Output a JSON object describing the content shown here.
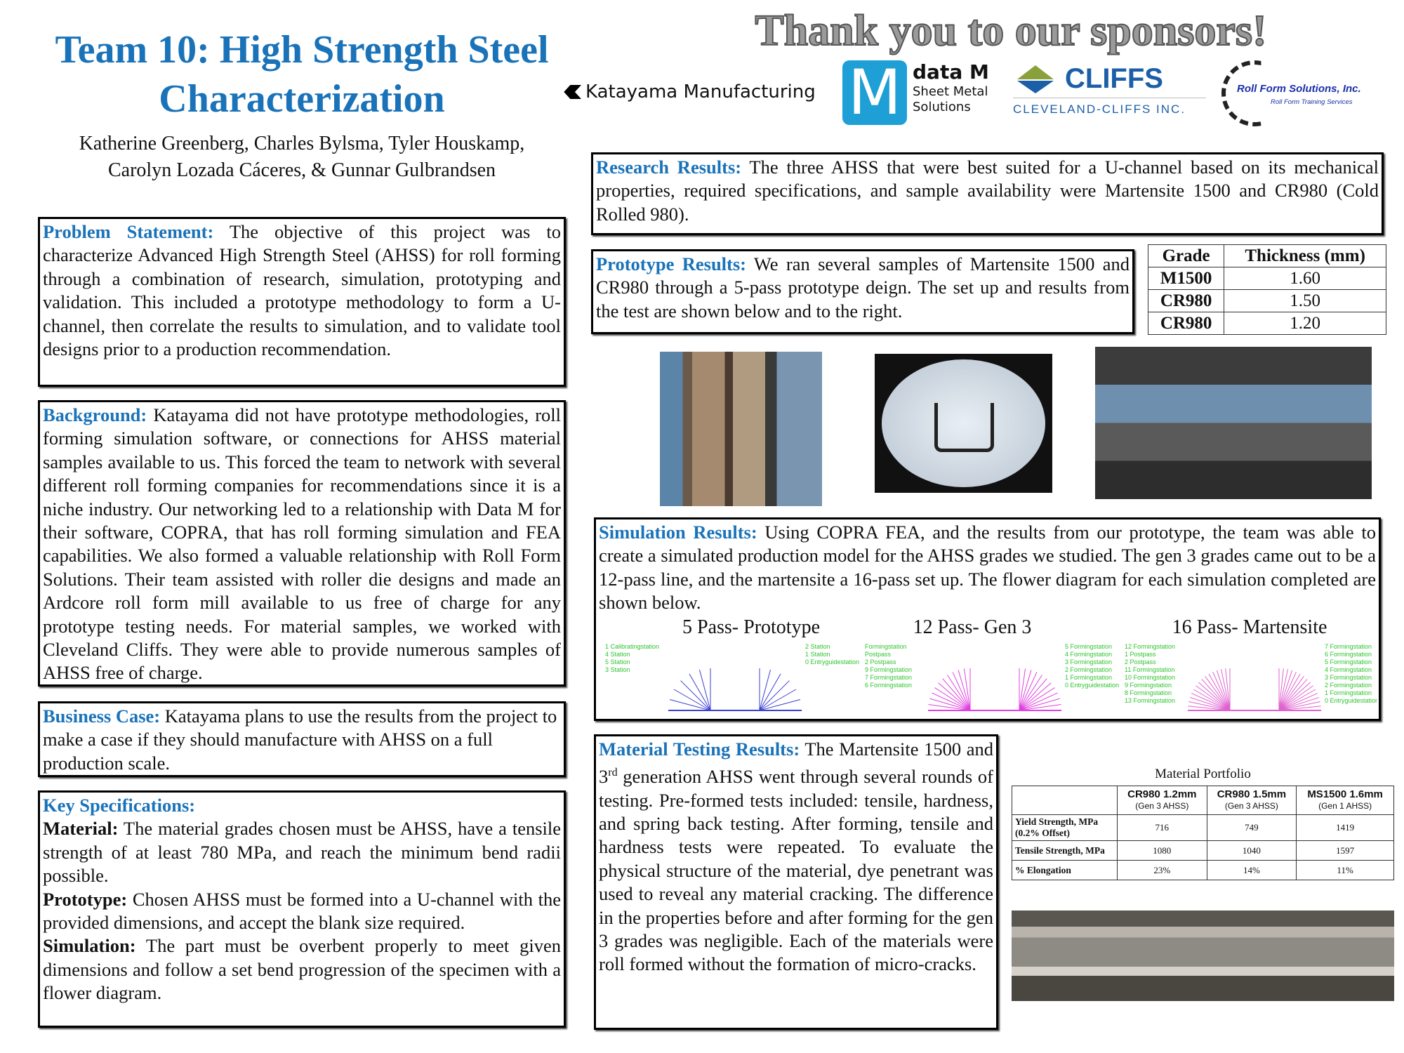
{
  "title": "Team 10: High Strength Steel Characterization",
  "authors": "Katherine Greenberg, Charles Bylsma, Tyler Houskamp, Carolyn Lozada Cáceres, & Gunnar Gulbrandsen",
  "sponsors": {
    "heading": "Thank you to our sponsors!",
    "katayama": "Katayama Manufacturing",
    "datam": {
      "name": "data M",
      "line1": "Sheet Metal",
      "line2": "Solutions",
      "letter": "M"
    },
    "cliffs": {
      "name": "CLIFFS",
      "sub": "CLEVELAND-CLIFFS INC."
    },
    "rollform": {
      "name": "Roll Form Solutions, Inc.",
      "sub": "Roll Form Training Services"
    },
    "colors": {
      "datam": "#1e9fd6",
      "cliffs_blue": "#1b5fa8",
      "cliffs_green": "#8aa03a",
      "rollform": "#1a2fa8"
    }
  },
  "problem": {
    "heading": "Problem Statement:",
    "body": " The objective of this project was to characterize Advanced High Strength Steel (AHSS) for roll forming through a combination of research, simulation, prototyping and validation. This included a prototype methodology to form a U-channel, then correlate the results to simulation, and to validate tool designs prior to a production recommendation."
  },
  "background": {
    "heading": "Background:",
    "body": " Katayama did not have prototype methodologies, roll forming simulation software, or connections for AHSS material samples available to us. This forced the team to network with several different roll forming companies for recommendations since it is a niche industry. Our networking led to a relationship with Data M for their software, COPRA, that has roll forming simulation and FEA capabilities. We also formed a valuable relationship with Roll Form Solutions. Their team assisted with roller die designs and made an Ardcore roll form mill available to us free of charge for any prototype testing needs. For material samples, we worked with Cleveland Cliffs. They were able to provide numerous samples of AHSS free of charge."
  },
  "business": {
    "heading": "Business Case:",
    "body": " Katayama plans to use the results from the project to make a case if they should manufacture with AHSS on a full production scale."
  },
  "specs": {
    "heading": "Key Specifications:",
    "items": [
      {
        "label": "Material:",
        "text": " The material grades chosen must be AHSS, have a tensile strength of at least 780 MPa, and reach the minimum bend radii possible."
      },
      {
        "label": "Prototype:",
        "text": " Chosen AHSS must be formed into a U-channel with the provided dimensions, and accept the blank size required."
      },
      {
        "label": "Simulation:",
        "text": " The part must be overbent properly to meet given dimensions and follow a set bend progression of the specimen with a flower diagram."
      }
    ]
  },
  "research": {
    "heading": "Research Results:",
    "body": " The three AHSS that were best suited for a U-channel based on its mechanical properties, required specifications, and sample availability were Martensite 1500 and CR980 (Cold Rolled 980)."
  },
  "prototype": {
    "heading": "Prototype Results:",
    "body": " We ran several samples of Martensite 1500 and CR980 through a 5-pass prototype deign. The set up and results from the test are shown below and to the right."
  },
  "grade_table": {
    "headers": [
      "Grade",
      "Thickness (mm)"
    ],
    "rows": [
      [
        "M1500",
        "1.60"
      ],
      [
        "CR980",
        "1.50"
      ],
      [
        "CR980",
        "1.20"
      ]
    ]
  },
  "simulation": {
    "heading": "Simulation Results:",
    "body": " Using COPRA FEA, and the results from our prototype, the team was able to create a simulated production model for the AHSS grades we studied. The gen 3 grades came out to be a 12-pass line, and the martensite a 16-pass set up. The flower diagram for each simulation completed are shown below.",
    "diagrams": [
      {
        "title": "5 Pass- Prototype",
        "color": "#3b3fd0",
        "labels": [
          "1 Calibratingstation",
          "4 Station",
          "5 Station",
          "3 Station",
          "2 Station",
          "1 Station",
          "0 Entryguidestation"
        ]
      },
      {
        "title": "12 Pass- Gen 3",
        "color": "#e040e0",
        "labels": [
          "Formingstation",
          "Postpass",
          "2 Postpass",
          "9 Formingstation",
          "7 Formingstation",
          "6 Formingstation",
          "5 Formingstation",
          "4 Formingstation",
          "3 Formingstation",
          "2 Formingstation",
          "1 Formingstation",
          "0 Entryguidestation"
        ]
      },
      {
        "title": "16 Pass- Martensite",
        "color": "#e060d0",
        "labels": [
          "12 Formingstation",
          "1 Postpass",
          "2 Postpass",
          "11 Formingstation",
          "10 Formingstation",
          "9 Formingstation",
          "8 Formingstation",
          "13 Formingstation",
          "7 Formingstation",
          "6 Formingstation",
          "5 Formingstation",
          "4 Formingstation",
          "3 Formingstation",
          "2 Formingstation",
          "1 Formingstation",
          "0 Entryguidestation"
        ]
      }
    ]
  },
  "testing": {
    "heading": "Material Testing Results:",
    "body_pre": " The Martensite 1500 and 3",
    "sup": "rd",
    "body": " generation AHSS went through several rounds of testing. Pre-formed tests included: tensile, hardness, and spring back testing. After forming, tensile and hardness tests were repeated. To evaluate the physical structure of the material, dye penetrant was used to reveal any material cracking. The difference in the properties before and after forming for the gen 3 grades was negligible. Each of the materials were roll formed without the formation of micro-cracks."
  },
  "portfolio": {
    "title": "Material Portfolio",
    "columns": [
      {
        "name": "CR980 1.2mm",
        "sub": "(Gen 3 AHSS)"
      },
      {
        "name": "CR980 1.5mm",
        "sub": "(Gen 3 AHSS)"
      },
      {
        "name": "MS1500 1.6mm",
        "sub": "(Gen 1 AHSS)"
      }
    ],
    "rows": [
      {
        "label": "Yield Strength, MPa (0.2% Offset)",
        "values": [
          "716",
          "749",
          "1419"
        ]
      },
      {
        "label": "Tensile Strength, MPa",
        "values": [
          "1080",
          "1040",
          "1597"
        ]
      },
      {
        "label": "% Elongation",
        "values": [
          "23%",
          "14%",
          "11%"
        ]
      }
    ]
  }
}
